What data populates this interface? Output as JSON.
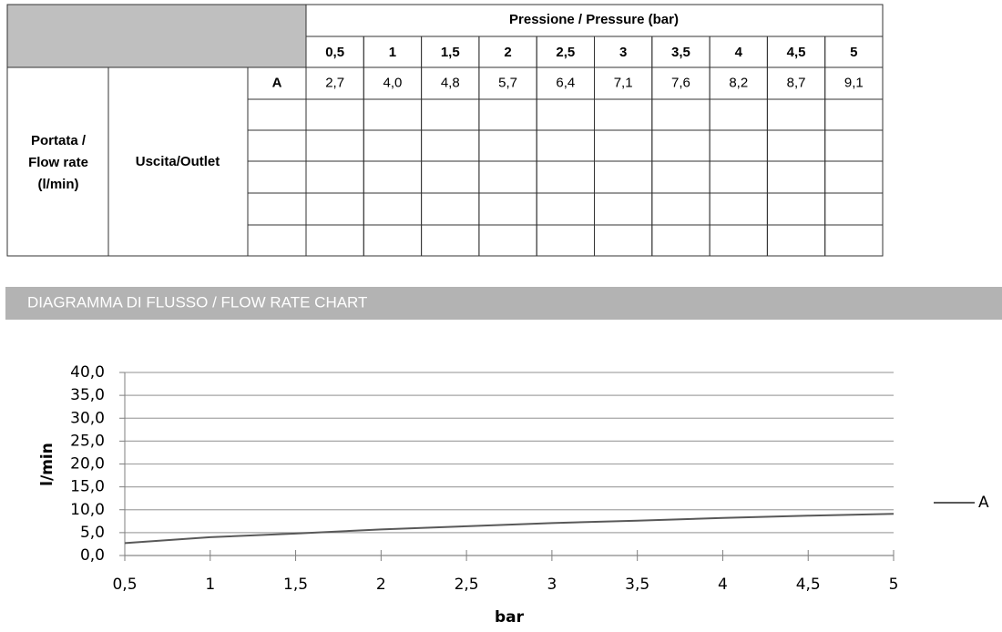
{
  "table": {
    "title": "Pressione / Pressure (bar)",
    "pressures": [
      "0,5",
      "1",
      "1,5",
      "2",
      "2,5",
      "3",
      "3,5",
      "4",
      "4,5",
      "5"
    ],
    "group_label": [
      "Portata /",
      "Flow rate",
      "(l/min)"
    ],
    "outlet_label": "Uscita/Outlet",
    "rows": [
      {
        "name": "A",
        "values": [
          "2,7",
          "4,0",
          "4,8",
          "5,7",
          "6,4",
          "7,1",
          "7,6",
          "8,2",
          "8,7",
          "9,1"
        ]
      }
    ]
  },
  "section_title": "DIAGRAMMA DI FLUSSO / FLOW RATE CHART",
  "chart_data": {
    "type": "line",
    "x_label": "bar",
    "y_label": "l/min",
    "x": [
      0.5,
      1,
      1.5,
      2,
      2.5,
      3,
      3.5,
      4,
      4.5,
      5
    ],
    "series": [
      {
        "name": "A",
        "color": "#595959",
        "values": [
          2.7,
          4.0,
          4.8,
          5.7,
          6.4,
          7.1,
          7.6,
          8.2,
          8.7,
          9.1
        ]
      }
    ],
    "xlim": [
      0.5,
      5
    ],
    "xticks": [
      {
        "value": 0.5,
        "label": "0,5"
      },
      1,
      {
        "value": 1.5,
        "label": "1,5"
      },
      2,
      {
        "value": 2.5,
        "label": "2,5"
      },
      3,
      {
        "value": 3.5,
        "label": "3,5"
      },
      4,
      {
        "value": 4.5,
        "label": "4,5"
      },
      5
    ],
    "ylim": [
      0,
      40
    ],
    "yticks": [
      {
        "value": 0,
        "label": "0,0"
      },
      {
        "value": 5,
        "label": "5,0"
      },
      {
        "value": 10,
        "label": "10,0"
      },
      {
        "value": 15,
        "label": "15,0"
      },
      {
        "value": 20,
        "label": "20,0"
      },
      {
        "value": 25,
        "label": "25,0"
      },
      {
        "value": 30,
        "label": "30,0"
      },
      {
        "value": 35,
        "label": "35,0"
      },
      {
        "value": 40,
        "label": "40,0"
      }
    ],
    "grid": true,
    "legend": "right"
  }
}
